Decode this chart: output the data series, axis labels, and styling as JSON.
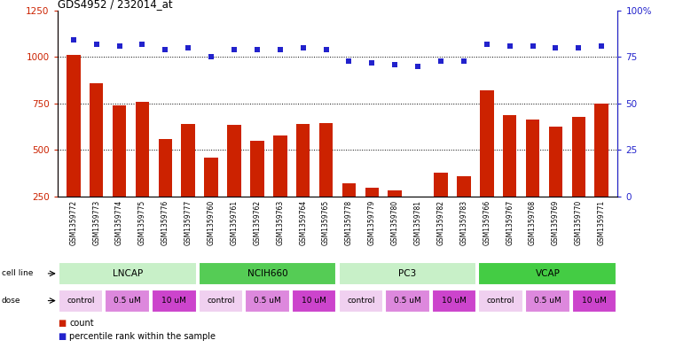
{
  "title": "GDS4952 / 232014_at",
  "samples": [
    "GSM1359772",
    "GSM1359773",
    "GSM1359774",
    "GSM1359775",
    "GSM1359776",
    "GSM1359777",
    "GSM1359760",
    "GSM1359761",
    "GSM1359762",
    "GSM1359763",
    "GSM1359764",
    "GSM1359765",
    "GSM1359778",
    "GSM1359779",
    "GSM1359780",
    "GSM1359781",
    "GSM1359782",
    "GSM1359783",
    "GSM1359766",
    "GSM1359767",
    "GSM1359768",
    "GSM1359769",
    "GSM1359770",
    "GSM1359771"
  ],
  "counts": [
    1010,
    860,
    740,
    760,
    560,
    640,
    460,
    635,
    550,
    580,
    640,
    645,
    320,
    300,
    285,
    215,
    380,
    360,
    820,
    690,
    665,
    625,
    680,
    750
  ],
  "percentiles": [
    84,
    82,
    81,
    82,
    79,
    80,
    75,
    79,
    79,
    79,
    80,
    79,
    73,
    72,
    71,
    70,
    73,
    73,
    82,
    81,
    81,
    80,
    80,
    81
  ],
  "cell_lines": [
    {
      "name": "LNCAP",
      "start": 0,
      "end": 6,
      "color": "#c8f0c8"
    },
    {
      "name": "NCIH660",
      "start": 6,
      "end": 12,
      "color": "#55cc55"
    },
    {
      "name": "PC3",
      "start": 12,
      "end": 18,
      "color": "#c8f0c8"
    },
    {
      "name": "VCAP",
      "start": 18,
      "end": 24,
      "color": "#44cc44"
    }
  ],
  "dose_groups": [
    {
      "label": "control",
      "start": 0,
      "end": 2,
      "color": "#f0d0f0"
    },
    {
      "label": "0.5 uM",
      "start": 2,
      "end": 4,
      "color": "#dd88dd"
    },
    {
      "label": "10 uM",
      "start": 4,
      "end": 6,
      "color": "#cc44cc"
    },
    {
      "label": "control",
      "start": 6,
      "end": 8,
      "color": "#f0d0f0"
    },
    {
      "label": "0.5 uM",
      "start": 8,
      "end": 10,
      "color": "#dd88dd"
    },
    {
      "label": "10 uM",
      "start": 10,
      "end": 12,
      "color": "#cc44cc"
    },
    {
      "label": "control",
      "start": 12,
      "end": 14,
      "color": "#f0d0f0"
    },
    {
      "label": "0.5 uM",
      "start": 14,
      "end": 16,
      "color": "#dd88dd"
    },
    {
      "label": "10 uM",
      "start": 16,
      "end": 18,
      "color": "#cc44cc"
    },
    {
      "label": "control",
      "start": 18,
      "end": 20,
      "color": "#f0d0f0"
    },
    {
      "label": "0.5 uM",
      "start": 20,
      "end": 22,
      "color": "#dd88dd"
    },
    {
      "label": "10 uM",
      "start": 22,
      "end": 24,
      "color": "#cc44cc"
    }
  ],
  "bar_color": "#cc2200",
  "dot_color": "#2222cc",
  "left_ylim": [
    250,
    1250
  ],
  "left_yticks": [
    250,
    500,
    750,
    1000,
    1250
  ],
  "right_ylim": [
    0,
    100
  ],
  "right_yticks": [
    0,
    25,
    50,
    75,
    100
  ],
  "hlines": [
    500,
    750,
    1000
  ],
  "sample_bg_color": "#d8d8d8",
  "cell_line_border_color": "#ffffff",
  "dose_border_color": "#ffffff"
}
